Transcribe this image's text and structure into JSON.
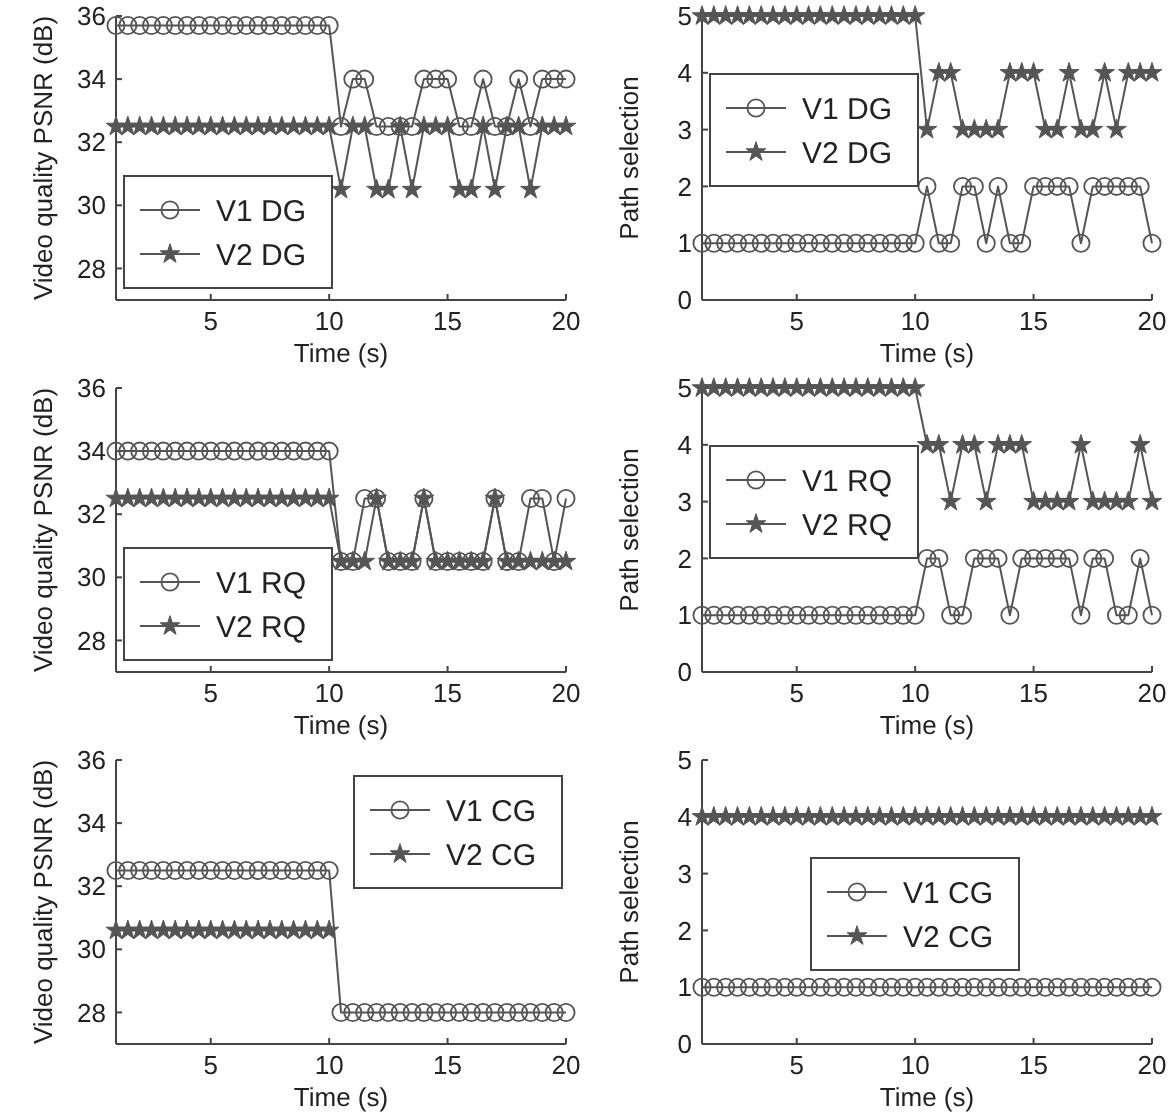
{
  "chart_data": [
    {
      "type": "line",
      "xlabel": "Time (s)",
      "ylabel": "Video quality PSNR (dB)",
      "xlim": [
        1,
        20
      ],
      "xticks": [
        5,
        10,
        15,
        20
      ],
      "ylim": [
        27,
        36
      ],
      "yticks": [
        28,
        30,
        32,
        34,
        36
      ],
      "legend": "bottom left",
      "grid": false,
      "x": [
        1,
        1.5,
        2,
        2.5,
        3,
        3.5,
        4,
        4.5,
        5,
        5.5,
        6,
        6.5,
        7,
        7.5,
        8,
        8.5,
        9,
        9.5,
        10,
        10.5,
        11,
        11.5,
        12,
        12.5,
        13,
        13.5,
        14,
        14.5,
        15,
        15.5,
        16,
        16.5,
        17,
        17.5,
        18,
        18.5,
        19,
        19.5,
        20
      ],
      "series": [
        {
          "name": "V1 DG",
          "color": "#555555",
          "marker": "circle",
          "values": [
            35.7,
            35.7,
            35.7,
            35.7,
            35.7,
            35.7,
            35.7,
            35.7,
            35.7,
            35.7,
            35.7,
            35.7,
            35.7,
            35.7,
            35.7,
            35.7,
            35.7,
            35.7,
            35.7,
            32.5,
            34,
            34,
            32.5,
            32.5,
            32.5,
            32.5,
            34,
            34,
            34,
            32.5,
            32.5,
            34,
            32.5,
            32.5,
            34,
            32.5,
            34,
            34,
            34
          ]
        },
        {
          "name": "V2 DG",
          "color": "#555555",
          "marker": "star",
          "values": [
            32.5,
            32.5,
            32.5,
            32.5,
            32.5,
            32.5,
            32.5,
            32.5,
            32.5,
            32.5,
            32.5,
            32.5,
            32.5,
            32.5,
            32.5,
            32.5,
            32.5,
            32.5,
            32.5,
            30.5,
            32.5,
            32.5,
            30.5,
            30.5,
            32.5,
            30.5,
            32.5,
            32.5,
            32.5,
            30.5,
            30.5,
            32.5,
            30.5,
            32.5,
            32.5,
            30.5,
            32.5,
            32.5,
            32.5
          ]
        }
      ]
    },
    {
      "type": "line",
      "xlabel": "Time (s)",
      "ylabel": "Path selection",
      "xlim": [
        1,
        20
      ],
      "xticks": [
        5,
        10,
        15,
        20
      ],
      "ylim": [
        0,
        5
      ],
      "yticks": [
        0,
        1,
        2,
        3,
        4,
        5
      ],
      "legend": "left",
      "grid": false,
      "x": [
        1,
        1.5,
        2,
        2.5,
        3,
        3.5,
        4,
        4.5,
        5,
        5.5,
        6,
        6.5,
        7,
        7.5,
        8,
        8.5,
        9,
        9.5,
        10,
        10.5,
        11,
        11.5,
        12,
        12.5,
        13,
        13.5,
        14,
        14.5,
        15,
        15.5,
        16,
        16.5,
        17,
        17.5,
        18,
        18.5,
        19,
        19.5,
        20
      ],
      "series": [
        {
          "name": "V1 DG",
          "color": "#555555",
          "marker": "circle",
          "values": [
            1,
            1,
            1,
            1,
            1,
            1,
            1,
            1,
            1,
            1,
            1,
            1,
            1,
            1,
            1,
            1,
            1,
            1,
            1,
            2,
            1,
            1,
            2,
            2,
            1,
            2,
            1,
            1,
            2,
            2,
            2,
            2,
            1,
            2,
            2,
            2,
            2,
            2,
            1
          ]
        },
        {
          "name": "V2 DG",
          "color": "#555555",
          "marker": "star",
          "values": [
            5,
            5,
            5,
            5,
            5,
            5,
            5,
            5,
            5,
            5,
            5,
            5,
            5,
            5,
            5,
            5,
            5,
            5,
            5,
            3,
            4,
            4,
            3,
            3,
            3,
            3,
            4,
            4,
            4,
            3,
            3,
            4,
            3,
            3,
            4,
            3,
            4,
            4,
            4
          ]
        }
      ]
    },
    {
      "type": "line",
      "xlabel": "Time (s)",
      "ylabel": "Video quality PSNR (dB)",
      "xlim": [
        1,
        20
      ],
      "xticks": [
        5,
        10,
        15,
        20
      ],
      "ylim": [
        27,
        36
      ],
      "yticks": [
        28,
        30,
        32,
        34,
        36
      ],
      "legend": "bottom left",
      "grid": false,
      "x": [
        1,
        1.5,
        2,
        2.5,
        3,
        3.5,
        4,
        4.5,
        5,
        5.5,
        6,
        6.5,
        7,
        7.5,
        8,
        8.5,
        9,
        9.5,
        10,
        10.5,
        11,
        11.5,
        12,
        12.5,
        13,
        13.5,
        14,
        14.5,
        15,
        15.5,
        16,
        16.5,
        17,
        17.5,
        18,
        18.5,
        19,
        19.5,
        20
      ],
      "series": [
        {
          "name": "V1 RQ",
          "color": "#555555",
          "marker": "circle",
          "values": [
            34,
            34,
            34,
            34,
            34,
            34,
            34,
            34,
            34,
            34,
            34,
            34,
            34,
            34,
            34,
            34,
            34,
            34,
            34,
            30.5,
            30.5,
            32.5,
            32.5,
            30.5,
            30.5,
            30.5,
            32.5,
            30.5,
            30.5,
            30.5,
            30.5,
            30.5,
            32.5,
            30.5,
            30.5,
            32.5,
            32.5,
            30.5,
            32.5
          ]
        },
        {
          "name": "V2 RQ",
          "color": "#555555",
          "marker": "star",
          "values": [
            32.5,
            32.5,
            32.5,
            32.5,
            32.5,
            32.5,
            32.5,
            32.5,
            32.5,
            32.5,
            32.5,
            32.5,
            32.5,
            32.5,
            32.5,
            32.5,
            32.5,
            32.5,
            32.5,
            30.5,
            30.5,
            30.5,
            32.5,
            30.5,
            30.5,
            30.5,
            32.5,
            30.5,
            30.5,
            30.5,
            30.5,
            30.5,
            32.5,
            30.5,
            30.5,
            30.5,
            30.5,
            30.5,
            30.5
          ]
        }
      ]
    },
    {
      "type": "line",
      "xlabel": "Time (s)",
      "ylabel": "Path selection",
      "xlim": [
        1,
        20
      ],
      "xticks": [
        5,
        10,
        15,
        20
      ],
      "ylim": [
        0,
        5
      ],
      "yticks": [
        0,
        1,
        2,
        3,
        4,
        5
      ],
      "legend": "left",
      "grid": false,
      "x": [
        1,
        1.5,
        2,
        2.5,
        3,
        3.5,
        4,
        4.5,
        5,
        5.5,
        6,
        6.5,
        7,
        7.5,
        8,
        8.5,
        9,
        9.5,
        10,
        10.5,
        11,
        11.5,
        12,
        12.5,
        13,
        13.5,
        14,
        14.5,
        15,
        15.5,
        16,
        16.5,
        17,
        17.5,
        18,
        18.5,
        19,
        19.5,
        20
      ],
      "series": [
        {
          "name": "V1 RQ",
          "color": "#555555",
          "marker": "circle",
          "values": [
            1,
            1,
            1,
            1,
            1,
            1,
            1,
            1,
            1,
            1,
            1,
            1,
            1,
            1,
            1,
            1,
            1,
            1,
            1,
            2,
            2,
            1,
            1,
            2,
            2,
            2,
            1,
            2,
            2,
            2,
            2,
            2,
            1,
            2,
            2,
            1,
            1,
            2,
            1
          ]
        },
        {
          "name": "V2 RQ",
          "color": "#555555",
          "marker": "star",
          "values": [
            5,
            5,
            5,
            5,
            5,
            5,
            5,
            5,
            5,
            5,
            5,
            5,
            5,
            5,
            5,
            5,
            5,
            5,
            5,
            4,
            4,
            3,
            4,
            4,
            3,
            4,
            4,
            4,
            3,
            3,
            3,
            3,
            4,
            3,
            3,
            3,
            3,
            4,
            3
          ]
        }
      ]
    },
    {
      "type": "line",
      "xlabel": "Time (s)",
      "ylabel": "Video quality PSNR (dB)",
      "xlim": [
        1,
        20
      ],
      "xticks": [
        5,
        10,
        15,
        20
      ],
      "ylim": [
        27,
        36
      ],
      "yticks": [
        28,
        30,
        32,
        34,
        36
      ],
      "legend": "top right",
      "grid": false,
      "x": [
        1,
        1.5,
        2,
        2.5,
        3,
        3.5,
        4,
        4.5,
        5,
        5.5,
        6,
        6.5,
        7,
        7.5,
        8,
        8.5,
        9,
        9.5,
        10,
        10.5,
        11,
        11.5,
        12,
        12.5,
        13,
        13.5,
        14,
        14.5,
        15,
        15.5,
        16,
        16.5,
        17,
        17.5,
        18,
        18.5,
        19,
        19.5,
        20
      ],
      "series": [
        {
          "name": "V1 CG",
          "color": "#555555",
          "marker": "circle",
          "values": [
            32.5,
            32.5,
            32.5,
            32.5,
            32.5,
            32.5,
            32.5,
            32.5,
            32.5,
            32.5,
            32.5,
            32.5,
            32.5,
            32.5,
            32.5,
            32.5,
            32.5,
            32.5,
            32.5,
            28,
            28,
            28,
            28,
            28,
            28,
            28,
            28,
            28,
            28,
            28,
            28,
            28,
            28,
            28,
            28,
            28,
            28,
            28,
            28
          ]
        },
        {
          "name": "V2 CG",
          "color": "#555555",
          "marker": "star",
          "values": [
            30.6,
            30.6,
            30.6,
            30.6,
            30.6,
            30.6,
            30.6,
            30.6,
            30.6,
            30.6,
            30.6,
            30.6,
            30.6,
            30.6,
            30.6,
            30.6,
            30.6,
            30.6,
            30.6,
            null,
            null,
            null,
            null,
            null,
            null,
            null,
            null,
            null,
            null,
            null,
            null,
            null,
            null,
            null,
            null,
            null,
            null,
            null,
            null
          ]
        }
      ]
    },
    {
      "type": "line",
      "xlabel": "Time (s)",
      "ylabel": "Path selection",
      "xlim": [
        1,
        20
      ],
      "xticks": [
        5,
        10,
        15,
        20
      ],
      "ylim": [
        0,
        5
      ],
      "yticks": [
        0,
        1,
        2,
        3,
        4,
        5
      ],
      "legend": "center",
      "grid": false,
      "x": [
        1,
        1.5,
        2,
        2.5,
        3,
        3.5,
        4,
        4.5,
        5,
        5.5,
        6,
        6.5,
        7,
        7.5,
        8,
        8.5,
        9,
        9.5,
        10,
        10.5,
        11,
        11.5,
        12,
        12.5,
        13,
        13.5,
        14,
        14.5,
        15,
        15.5,
        16,
        16.5,
        17,
        17.5,
        18,
        18.5,
        19,
        19.5,
        20
      ],
      "series": [
        {
          "name": "V1 CG",
          "color": "#555555",
          "marker": "circle",
          "values": [
            1,
            1,
            1,
            1,
            1,
            1,
            1,
            1,
            1,
            1,
            1,
            1,
            1,
            1,
            1,
            1,
            1,
            1,
            1,
            1,
            1,
            1,
            1,
            1,
            1,
            1,
            1,
            1,
            1,
            1,
            1,
            1,
            1,
            1,
            1,
            1,
            1,
            1,
            1
          ]
        },
        {
          "name": "V2 CG",
          "color": "#555555",
          "marker": "star",
          "values": [
            4,
            4,
            4,
            4,
            4,
            4,
            4,
            4,
            4,
            4,
            4,
            4,
            4,
            4,
            4,
            4,
            4,
            4,
            4,
            4,
            4,
            4,
            4,
            4,
            4,
            4,
            4,
            4,
            4,
            4,
            4,
            4,
            4,
            4,
            4,
            4,
            4,
            4,
            4
          ]
        }
      ]
    }
  ]
}
